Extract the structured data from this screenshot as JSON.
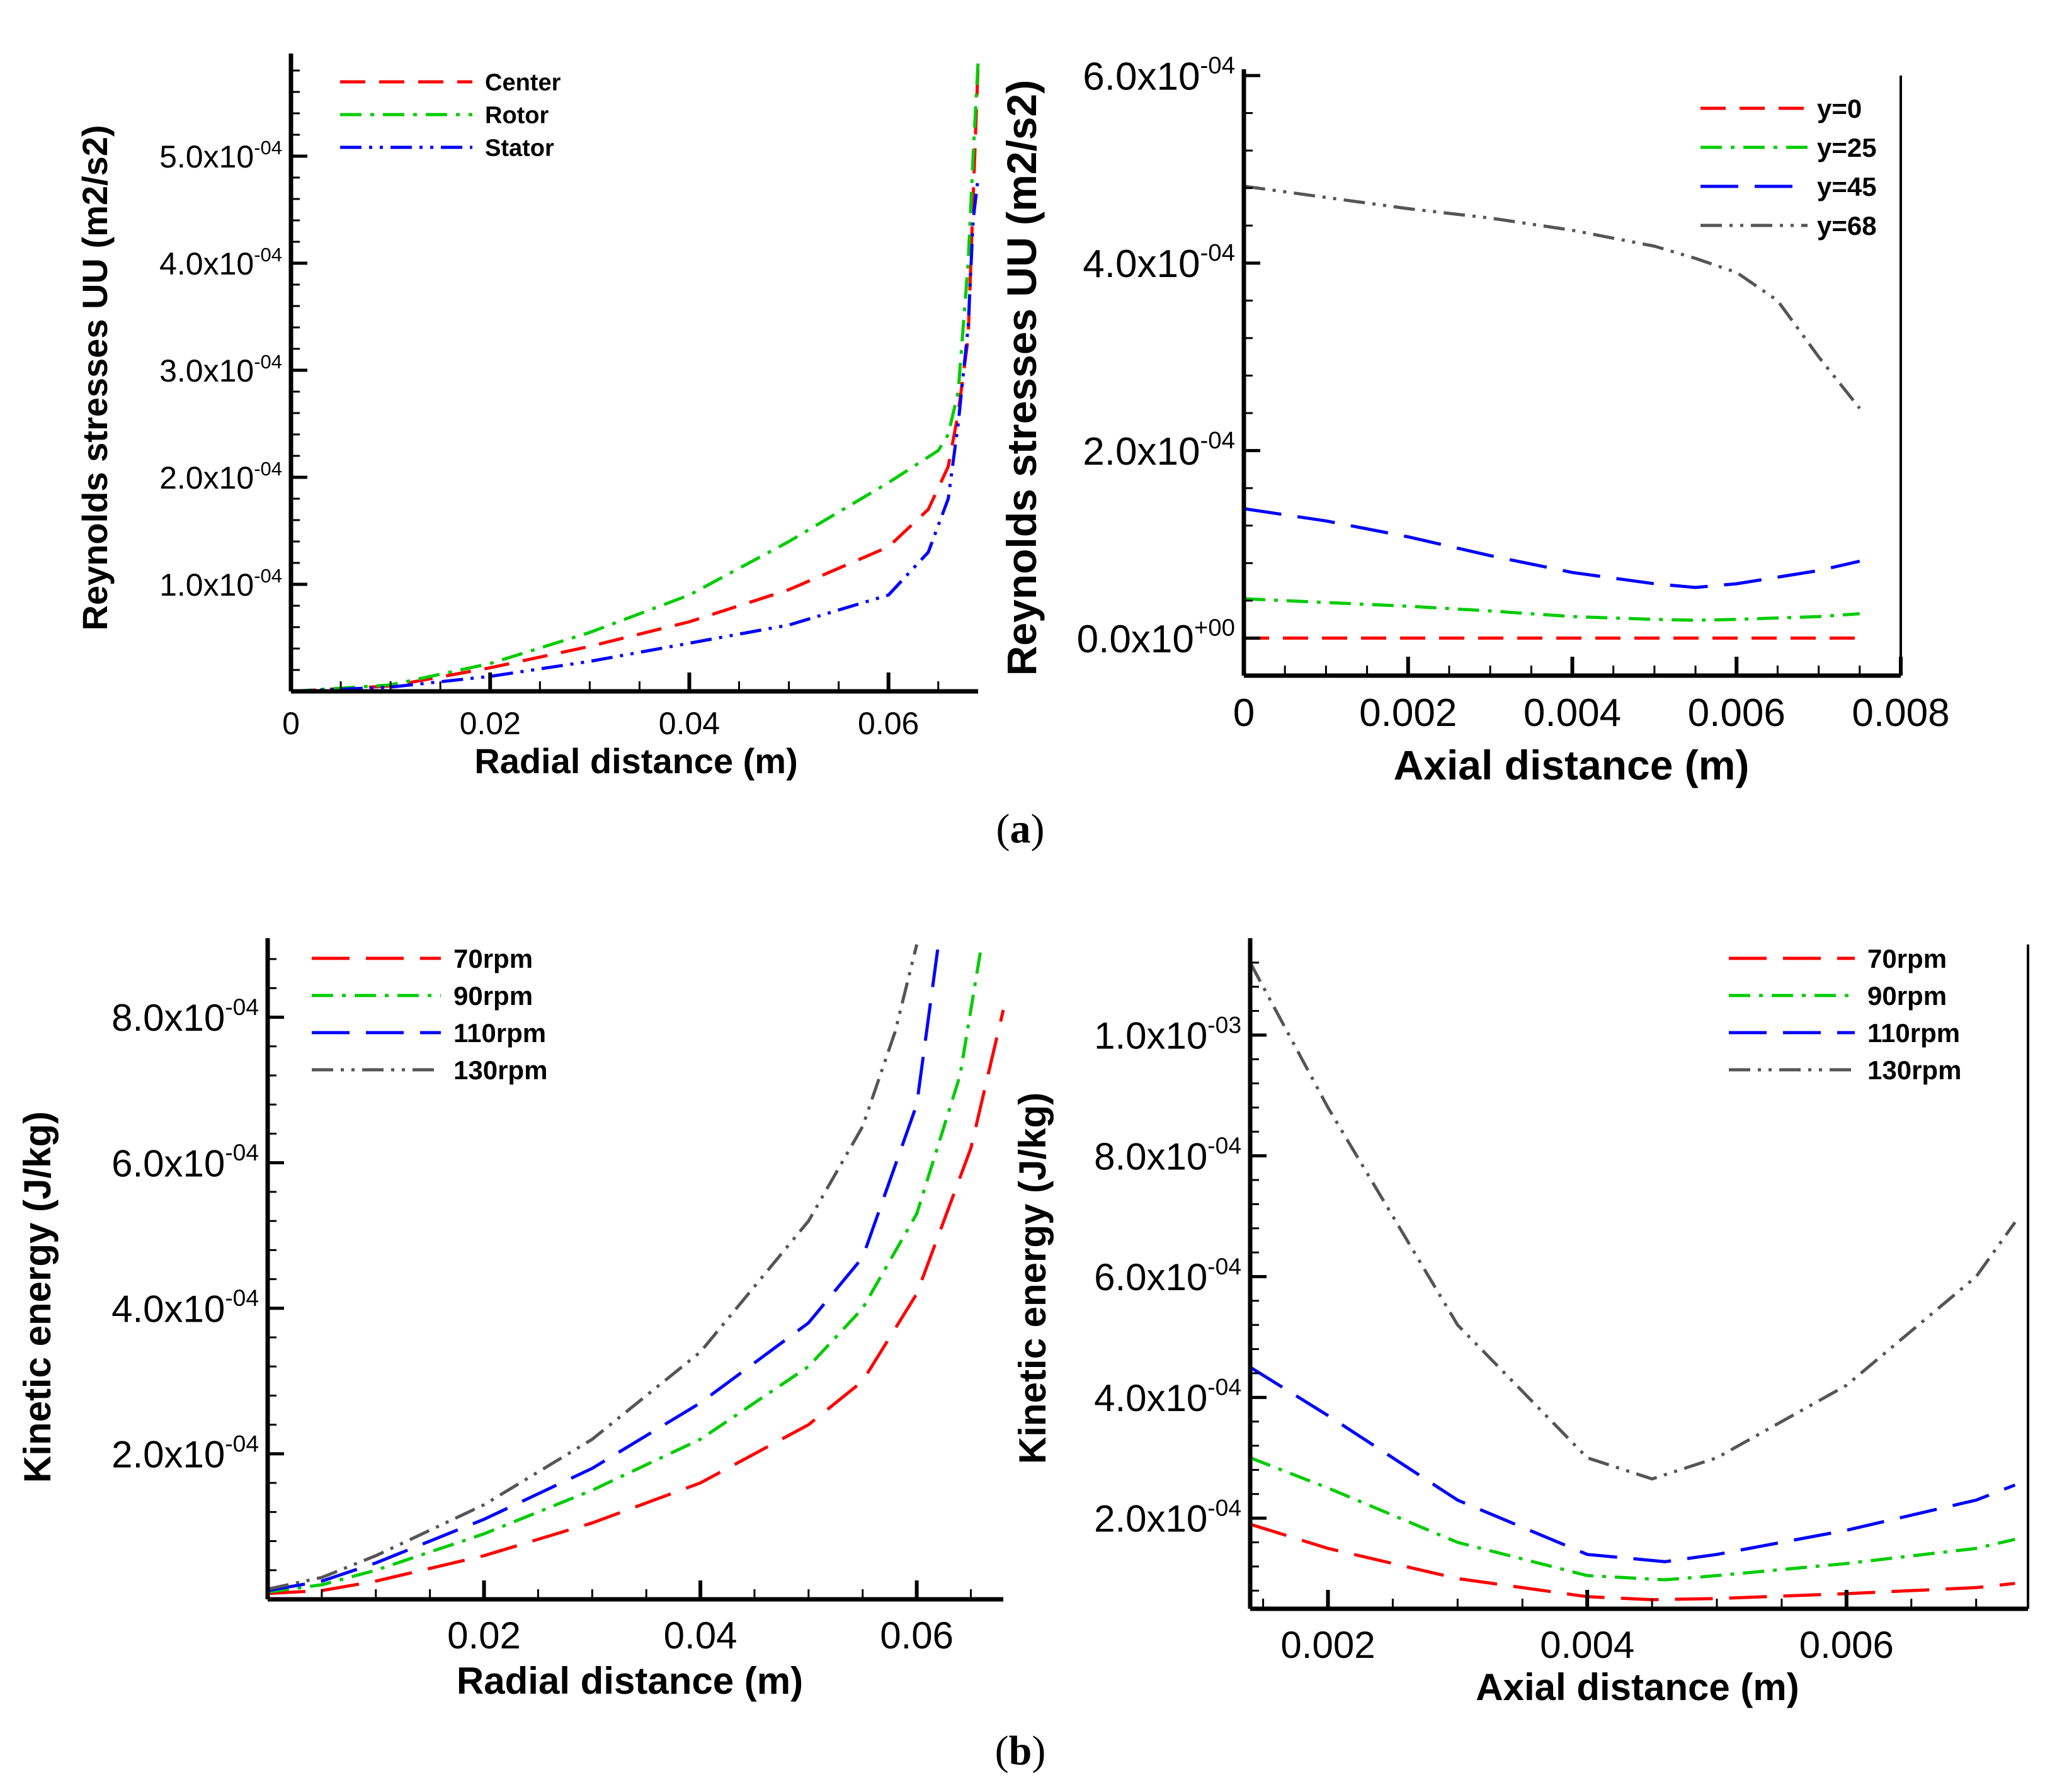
{
  "figure": {
    "panel_labels": [
      {
        "open": "(",
        "letter": "a",
        "close": ")"
      },
      {
        "open": "(",
        "letter": "b",
        "close": ")"
      }
    ]
  },
  "chart_data": [
    {
      "type": "line",
      "xlabel": "Radial distance (m)",
      "ylabel": "Reynolds stresses UU (m2/s2)",
      "xlim": [
        0,
        0.069
      ],
      "ylim": [
        0,
        0.00059
      ],
      "xticks": [
        {
          "value": 0,
          "label": "0"
        },
        {
          "value": 0.02,
          "label": "0.02"
        },
        {
          "value": 0.04,
          "label": "0.04"
        },
        {
          "value": 0.06,
          "label": "0.06"
        }
      ],
      "yticks": [
        {
          "value": 0.0001,
          "mantissa": "1.0x10",
          "exp": "-04"
        },
        {
          "value": 0.0002,
          "mantissa": "2.0x10",
          "exp": "-04"
        },
        {
          "value": 0.0003,
          "mantissa": "3.0x10",
          "exp": "-04"
        },
        {
          "value": 0.0004,
          "mantissa": "4.0x10",
          "exp": "-04"
        },
        {
          "value": 0.0005,
          "mantissa": "5.0x10",
          "exp": "-04"
        }
      ],
      "legend_position": "top-left",
      "grid": false,
      "series": [
        {
          "name": "Center",
          "color": "#ff0000",
          "dash": "dash",
          "x": [
            0.0,
            0.01,
            0.02,
            0.03,
            0.04,
            0.05,
            0.06,
            0.064,
            0.066,
            0.067,
            0.068,
            0.0685,
            0.069
          ],
          "y": [
            0.0,
            5e-06,
            2.2e-05,
            4.2e-05,
            6.5e-05,
            9.5e-05,
            0.000135,
            0.00017,
            0.00021,
            0.00026,
            0.00033,
            0.00046,
            0.000585
          ]
        },
        {
          "name": "Rotor",
          "color": "#00cc00",
          "dash": "dashdot",
          "x": [
            0.0,
            0.01,
            0.02,
            0.03,
            0.04,
            0.05,
            0.06,
            0.065,
            0.066,
            0.067,
            0.068,
            0.0685,
            0.069
          ],
          "y": [
            0.0,
            6e-06,
            2.6e-05,
            5.5e-05,
            9e-05,
            0.00014,
            0.000195,
            0.000225,
            0.00024,
            0.00028,
            0.0004,
            0.0005,
            0.000588
          ]
        },
        {
          "name": "Stator",
          "color": "#0000ff",
          "dash": "dashdotdot",
          "x": [
            0.0,
            0.01,
            0.02,
            0.03,
            0.04,
            0.05,
            0.06,
            0.064,
            0.066,
            0.067,
            0.068,
            0.0685,
            0.069
          ],
          "y": [
            0.0,
            4e-06,
            1.4e-05,
            2.8e-05,
            4.5e-05,
            6.2e-05,
            9e-05,
            0.00013,
            0.00018,
            0.00025,
            0.00034,
            0.00044,
            0.00048
          ]
        }
      ]
    },
    {
      "type": "line",
      "xlabel": "Axial distance (m)",
      "ylabel": "Reynolds stresses UU (m2/s2)",
      "xlim": [
        0,
        0.008
      ],
      "ylim": [
        -4e-05,
        0.0006
      ],
      "xticks": [
        {
          "value": 0,
          "label": "0"
        },
        {
          "value": 0.002,
          "label": "0.002"
        },
        {
          "value": 0.004,
          "label": "0.004"
        },
        {
          "value": 0.006,
          "label": "0.006"
        },
        {
          "value": 0.008,
          "label": "0.008"
        }
      ],
      "yticks": [
        {
          "value": 0.0,
          "mantissa": "0.0x10",
          "exp": "+00"
        },
        {
          "value": 0.0002,
          "mantissa": "2.0x10",
          "exp": "-04"
        },
        {
          "value": 0.0004,
          "mantissa": "4.0x10",
          "exp": "-04"
        },
        {
          "value": 0.0006,
          "mantissa": "6.0x10",
          "exp": "-04"
        }
      ],
      "legend_position": "top-right",
      "grid": false,
      "series": [
        {
          "name": "y=0",
          "color": "#ff0000",
          "dash": "dash",
          "x": [
            0.0,
            0.002,
            0.004,
            0.0055,
            0.0065,
            0.0075
          ],
          "y": [
            0.0,
            0.0,
            0.0,
            0.0,
            0.0,
            0.0
          ]
        },
        {
          "name": "y=25",
          "color": "#00cc00",
          "dash": "dashdot",
          "x": [
            0.0,
            0.001,
            0.002,
            0.003,
            0.004,
            0.005,
            0.0055,
            0.006,
            0.007,
            0.0075
          ],
          "y": [
            4.2e-05,
            3.8e-05,
            3.4e-05,
            2.9e-05,
            2.3e-05,
            2e-05,
            1.9e-05,
            2e-05,
            2.3e-05,
            2.6e-05
          ]
        },
        {
          "name": "y=45",
          "color": "#0000ff",
          "dash": "longdash",
          "x": [
            0.0,
            0.001,
            0.002,
            0.003,
            0.004,
            0.005,
            0.0055,
            0.006,
            0.007,
            0.0075
          ],
          "y": [
            0.000138,
            0.000125,
            0.000108,
            8.8e-05,
            7e-05,
            5.8e-05,
            5.4e-05,
            5.8e-05,
            7.2e-05,
            8.2e-05
          ]
        },
        {
          "name": "y=68",
          "color": "#555555",
          "dash": "dashdotdot",
          "x": [
            0.0,
            0.001,
            0.002,
            0.003,
            0.004,
            0.005,
            0.0055,
            0.006,
            0.0065,
            0.007,
            0.0075
          ],
          "y": [
            0.000482,
            0.00047,
            0.000458,
            0.000448,
            0.000435,
            0.000418,
            0.000405,
            0.00039,
            0.00036,
            0.0003,
            0.000245
          ]
        }
      ]
    },
    {
      "type": "line",
      "xlabel": "Radial distance (m)",
      "ylabel": "Kinetic energy (J/kg)",
      "xlim": [
        0,
        0.068
      ],
      "ylim": [
        0,
        0.0009
      ],
      "xticks": [
        {
          "value": 0.02,
          "label": "0.02"
        },
        {
          "value": 0.04,
          "label": "0.04"
        },
        {
          "value": 0.06,
          "label": "0.06"
        }
      ],
      "yticks": [
        {
          "value": 0.0002,
          "mantissa": "2.0x10",
          "exp": "-04"
        },
        {
          "value": 0.0004,
          "mantissa": "4.0x10",
          "exp": "-04"
        },
        {
          "value": 0.0006,
          "mantissa": "6.0x10",
          "exp": "-04"
        },
        {
          "value": 0.0008,
          "mantissa": "8.0x10",
          "exp": "-04"
        }
      ],
      "legend_position": "top-left",
      "grid": false,
      "series": [
        {
          "name": "70rpm",
          "color": "#ff0000",
          "dash": "longdash",
          "x": [
            0.0,
            0.005,
            0.01,
            0.02,
            0.03,
            0.04,
            0.05,
            0.055,
            0.06,
            0.065,
            0.068
          ],
          "y": [
            8e-06,
            1.2e-05,
            2.5e-05,
            6e-05,
            0.000105,
            0.00016,
            0.00024,
            0.0003,
            0.00042,
            0.00062,
            0.00081
          ]
        },
        {
          "name": "90rpm",
          "color": "#00cc00",
          "dash": "dashdot",
          "x": [
            0.0,
            0.005,
            0.01,
            0.02,
            0.03,
            0.04,
            0.05,
            0.055,
            0.06,
            0.064,
            0.066
          ],
          "y": [
            1e-05,
            2e-05,
            4e-05,
            9e-05,
            0.00015,
            0.00022,
            0.00032,
            0.0004,
            0.00053,
            0.00072,
            0.0009
          ]
        },
        {
          "name": "110rpm",
          "color": "#0000ff",
          "dash": "longdash",
          "x": [
            0.0,
            0.005,
            0.01,
            0.02,
            0.03,
            0.04,
            0.05,
            0.055,
            0.06,
            0.062
          ],
          "y": [
            1.2e-05,
            2.5e-05,
            5e-05,
            0.00011,
            0.00018,
            0.00027,
            0.00038,
            0.00047,
            0.00068,
            0.0009
          ]
        },
        {
          "name": "130rpm",
          "color": "#555555",
          "dash": "dashdotdot",
          "x": [
            0.0,
            0.005,
            0.01,
            0.02,
            0.03,
            0.04,
            0.05,
            0.055,
            0.058,
            0.06
          ],
          "y": [
            1.4e-05,
            3e-05,
            6e-05,
            0.00013,
            0.00022,
            0.00034,
            0.00052,
            0.00065,
            0.00078,
            0.0009
          ]
        }
      ]
    },
    {
      "type": "line",
      "xlabel": "Axial distance (m)",
      "ylabel": "Kinetic energy (J/kg)",
      "xlim": [
        0.0014,
        0.0074
      ],
      "ylim": [
        5e-05,
        0.00115
      ],
      "xticks": [
        {
          "value": 0.002,
          "label": "0.002"
        },
        {
          "value": 0.004,
          "label": "0.004"
        },
        {
          "value": 0.006,
          "label": "0.006"
        }
      ],
      "yticks": [
        {
          "value": 0.0002,
          "mantissa": "2.0x10",
          "exp": "-04"
        },
        {
          "value": 0.0004,
          "mantissa": "4.0x10",
          "exp": "-04"
        },
        {
          "value": 0.0006,
          "mantissa": "6.0x10",
          "exp": "-04"
        },
        {
          "value": 0.0008,
          "mantissa": "8.0x10",
          "exp": "-04"
        },
        {
          "value": 0.001,
          "mantissa": "1.0x10",
          "exp": "-03"
        }
      ],
      "legend_position": "top-right",
      "grid": false,
      "series": [
        {
          "name": "70rpm",
          "color": "#ff0000",
          "dash": "longdash",
          "x": [
            0.0014,
            0.002,
            0.003,
            0.004,
            0.0045,
            0.005,
            0.006,
            0.007,
            0.0073
          ],
          "y": [
            0.00019,
            0.00015,
            0.0001,
            7e-05,
            6.5e-05,
            6.7e-05,
            7.5e-05,
            8.5e-05,
            9.2e-05
          ]
        },
        {
          "name": "90rpm",
          "color": "#00cc00",
          "dash": "dashdot",
          "x": [
            0.0014,
            0.002,
            0.003,
            0.004,
            0.0046,
            0.005,
            0.006,
            0.007,
            0.0073
          ],
          "y": [
            0.0003,
            0.00025,
            0.00016,
            0.000105,
            9.8e-05,
            0.000105,
            0.000125,
            0.00015,
            0.000165
          ]
        },
        {
          "name": "110rpm",
          "color": "#0000ff",
          "dash": "longdash",
          "x": [
            0.0014,
            0.002,
            0.003,
            0.004,
            0.0046,
            0.005,
            0.006,
            0.007,
            0.0073
          ],
          "y": [
            0.00045,
            0.00037,
            0.00023,
            0.00014,
            0.000128,
            0.00014,
            0.00018,
            0.00023,
            0.000255
          ]
        },
        {
          "name": "130rpm",
          "color": "#555555",
          "dash": "dashdotdot",
          "x": [
            0.0014,
            0.002,
            0.003,
            0.004,
            0.0045,
            0.005,
            0.006,
            0.007,
            0.0073
          ],
          "y": [
            0.00112,
            0.00088,
            0.00052,
            0.0003,
            0.000265,
            0.0003,
            0.00042,
            0.0006,
            0.00069
          ]
        }
      ]
    }
  ]
}
